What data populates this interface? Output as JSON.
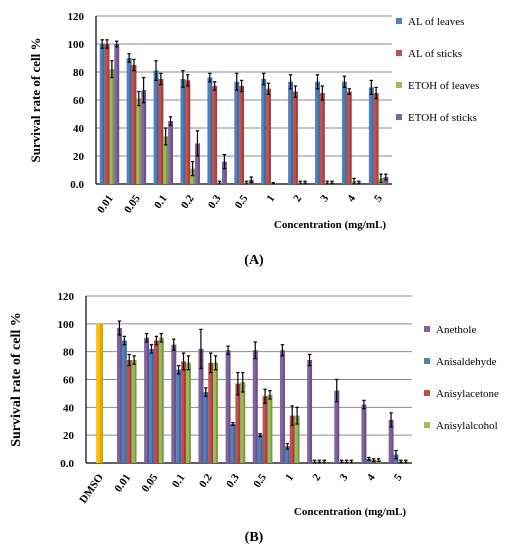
{
  "chart_data": [
    {
      "type": "bar",
      "panel_label": "(A)",
      "xlabel": "Concentration (mg/mL)",
      "ylabel": "Survival rate of cell %",
      "ylim": [
        0,
        120
      ],
      "yticks": [
        "0.0",
        "20",
        "40",
        "60",
        "80",
        "100",
        "120"
      ],
      "grid": true,
      "legend_position": "right",
      "categories": [
        "0.01",
        "0.05",
        "0.1",
        "0.2",
        "0.3",
        "0.5",
        "1",
        "2",
        "3",
        "4",
        "5"
      ],
      "series": [
        {
          "name": "AL of leaves",
          "color": "#4f81bd",
          "values": [
            100,
            90,
            81,
            75,
            76,
            73,
            75,
            73,
            73,
            73,
            69
          ],
          "errors": [
            3,
            3,
            7,
            6,
            3,
            6,
            4,
            5,
            5,
            4,
            5
          ]
        },
        {
          "name": "AL of sticks",
          "color": "#c0504d",
          "values": [
            100,
            85,
            75,
            74,
            70,
            70,
            68,
            66,
            65,
            66,
            65
          ],
          "errors": [
            3,
            4,
            4,
            4,
            3,
            4,
            4,
            4,
            5,
            2,
            4
          ]
        },
        {
          "name": "ETOH of leaves",
          "color": "#9bbb59",
          "values": [
            82,
            61,
            34,
            11,
            1,
            1,
            0.5,
            1,
            1,
            2,
            4
          ],
          "errors": [
            6,
            5,
            6,
            5,
            1,
            1,
            0.5,
            1,
            1,
            2,
            3
          ]
        },
        {
          "name": "ETOH of sticks",
          "color": "#8064a2",
          "values": [
            100,
            67,
            45,
            29,
            16,
            3,
            0,
            1,
            1,
            1,
            5
          ],
          "errors": [
            2,
            9,
            3,
            9,
            5,
            2,
            0,
            1,
            1,
            1,
            2
          ]
        }
      ]
    },
    {
      "type": "bar",
      "panel_label": "(B)",
      "xlabel": "Concentration (mg/mL)",
      "ylabel": "Survival rate of cell %",
      "ylim": [
        0,
        120
      ],
      "yticks": [
        "0.0",
        "20",
        "40",
        "60",
        "80",
        "100",
        "120"
      ],
      "grid": true,
      "legend_position": "right",
      "categories": [
        "DMSO",
        "0.01",
        "0.05",
        "0.1",
        "0.2",
        "0.3",
        "0.5",
        "1",
        "2",
        "3",
        "4",
        "5"
      ],
      "control": {
        "category": "DMSO",
        "value": 100,
        "color": "#ffc000"
      },
      "series": [
        {
          "name": "Anethole",
          "color": "#8064a2",
          "values": [
            null,
            97,
            90,
            85,
            82,
            81,
            81,
            81,
            74,
            52,
            42,
            31
          ],
          "errors": [
            null,
            5,
            3,
            4,
            14,
            3,
            6,
            4,
            4,
            8,
            3,
            5
          ]
        },
        {
          "name": "Anisaldehyde",
          "color": "#4f81bd",
          "values": [
            null,
            88,
            82,
            67,
            51,
            28,
            20,
            12,
            1,
            1,
            3,
            6
          ],
          "errors": [
            null,
            3,
            3,
            3,
            3,
            1,
            1,
            2,
            1,
            1,
            1,
            3
          ]
        },
        {
          "name": "Anisylacetone",
          "color": "#c0504d",
          "values": [
            null,
            74,
            88,
            73,
            72,
            57,
            48,
            34,
            1,
            1,
            2,
            1
          ],
          "errors": [
            null,
            4,
            3,
            6,
            7,
            8,
            5,
            7,
            1,
            1,
            1,
            1
          ]
        },
        {
          "name": "Anisylalcohol",
          "color": "#9bbb59",
          "values": [
            null,
            74,
            90,
            72,
            72,
            58,
            49,
            34,
            1,
            1,
            2,
            1
          ],
          "errors": [
            null,
            3,
            3,
            5,
            5,
            7,
            3,
            6,
            1,
            1,
            1,
            1
          ]
        }
      ]
    }
  ]
}
